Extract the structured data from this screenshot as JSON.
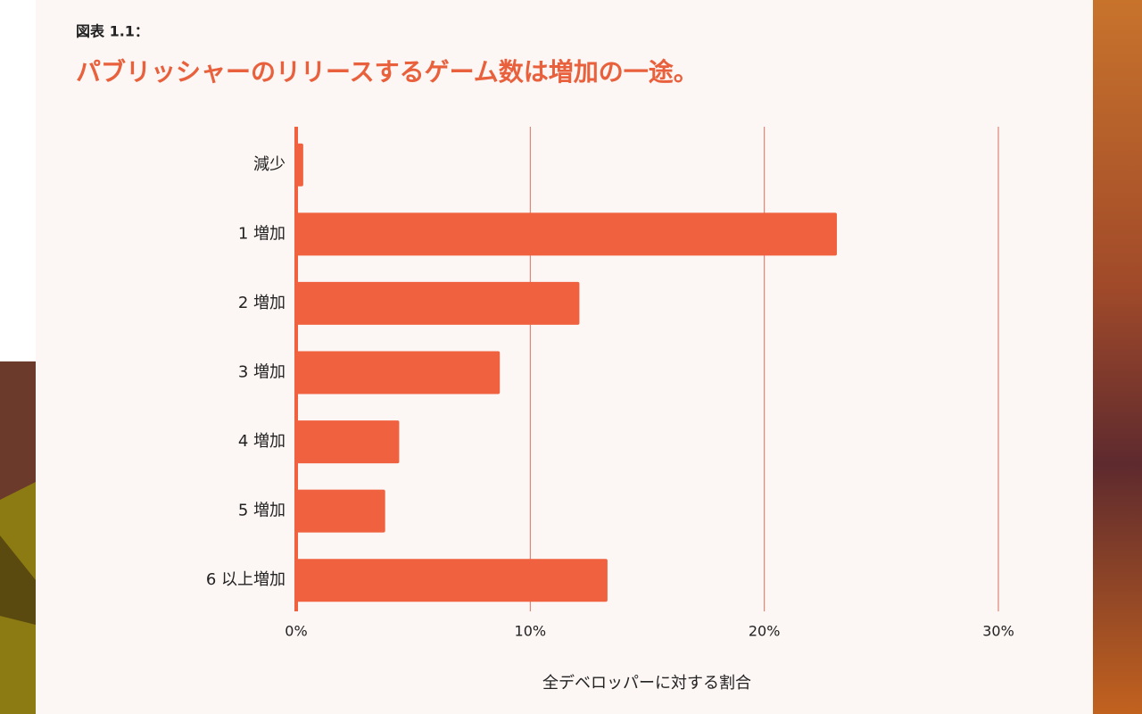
{
  "chart_data": {
    "type": "bar",
    "orientation": "horizontal",
    "figure_label": "図表 1.1：",
    "title": "パブリッシャーのリリースするゲーム数は増加の一途。",
    "categories": [
      "減少",
      "1 増加",
      "2 増加",
      "3 増加",
      "4 増加",
      "5 増加",
      "6 以上増加"
    ],
    "values": [
      0.3,
      23.1,
      12.1,
      8.7,
      4.4,
      3.8,
      13.3
    ],
    "color": "#f0623f",
    "xlim": [
      0,
      30
    ],
    "xticks": [
      {
        "value": 0,
        "label": "0%"
      },
      {
        "value": 10,
        "label": "10%"
      },
      {
        "value": 20,
        "label": "20%"
      },
      {
        "value": 30,
        "label": "30%"
      }
    ],
    "xlabel": "全デベロッパーに対する割合",
    "grid": true
  }
}
